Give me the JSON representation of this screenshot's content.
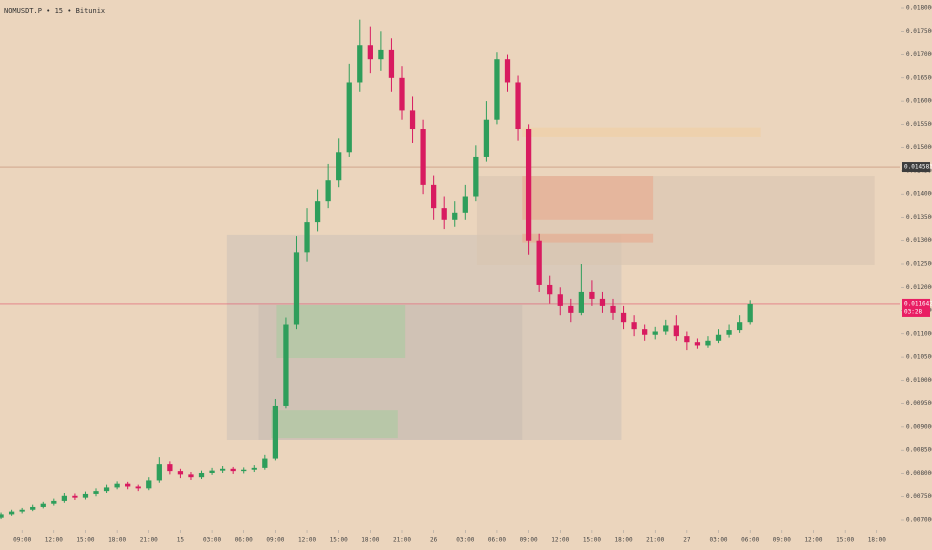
{
  "chart_data": {
    "type": "candlestick",
    "title": "NOMUSDT.P • 15 • Bitunix",
    "up_color": "#2e9e5b",
    "down_color": "#d81b60",
    "x": [
      -2,
      -1,
      0,
      1,
      2,
      3,
      4,
      5,
      6,
      7,
      8,
      9,
      10,
      11,
      12,
      13,
      14,
      15,
      16,
      17,
      18,
      19,
      20,
      21,
      22,
      23,
      24,
      25,
      26,
      27,
      28,
      29,
      30,
      31,
      32,
      33,
      34,
      35,
      36,
      37,
      38,
      39,
      40,
      41,
      42,
      43,
      44,
      45,
      46,
      47,
      48,
      49,
      50,
      51,
      52,
      53,
      54,
      55,
      56,
      57,
      58,
      59,
      60,
      61,
      62,
      63,
      64,
      65,
      66,
      67,
      68,
      69
    ],
    "open": [
      0.00705,
      0.00712,
      0.00718,
      0.00722,
      0.00728,
      0.00735,
      0.00741,
      0.00752,
      0.00748,
      0.00756,
      0.00762,
      0.0077,
      0.00778,
      0.00772,
      0.00768,
      0.00785,
      0.0082,
      0.00805,
      0.00798,
      0.00792,
      0.00801,
      0.00806,
      0.0081,
      0.00805,
      0.00808,
      0.00812,
      0.00832,
      0.00945,
      0.0112,
      0.01275,
      0.0134,
      0.01385,
      0.0143,
      0.0149,
      0.0164,
      0.0172,
      0.0169,
      0.0171,
      0.0165,
      0.0158,
      0.0154,
      0.0142,
      0.0137,
      0.01345,
      0.0136,
      0.01395,
      0.0148,
      0.0156,
      0.0169,
      0.0164,
      0.0154,
      0.013,
      0.01205,
      0.01185,
      0.0116,
      0.01145,
      0.0119,
      0.01175,
      0.0116,
      0.01145,
      0.01125,
      0.0111,
      0.01098,
      0.01105,
      0.01118,
      0.01095,
      0.01082,
      0.01075,
      0.01085,
      0.01098,
      0.01108,
      0.01125
    ],
    "high": [
      0.00716,
      0.00722,
      0.00726,
      0.00733,
      0.00739,
      0.00746,
      0.00758,
      0.00757,
      0.00761,
      0.00768,
      0.00776,
      0.00783,
      0.00782,
      0.00776,
      0.00792,
      0.00835,
      0.00826,
      0.0081,
      0.00803,
      0.00806,
      0.00812,
      0.00816,
      0.00814,
      0.00813,
      0.00818,
      0.0084,
      0.0096,
      0.01135,
      0.0131,
      0.0137,
      0.0141,
      0.01465,
      0.0152,
      0.0168,
      0.01775,
      0.0176,
      0.0175,
      0.01735,
      0.01675,
      0.0161,
      0.0156,
      0.0144,
      0.01395,
      0.01385,
      0.0142,
      0.01505,
      0.016,
      0.01705,
      0.017,
      0.01655,
      0.0155,
      0.01315,
      0.01225,
      0.012,
      0.01175,
      0.0125,
      0.01215,
      0.0119,
      0.01175,
      0.0116,
      0.0114,
      0.0112,
      0.01115,
      0.0113,
      0.0114,
      0.01105,
      0.0109,
      0.01095,
      0.0111,
      0.0112,
      0.0114,
      0.01172
    ],
    "low": [
      0.00702,
      0.00709,
      0.00714,
      0.00719,
      0.00725,
      0.00731,
      0.00737,
      0.00743,
      0.00744,
      0.00751,
      0.00758,
      0.00766,
      0.00766,
      0.00762,
      0.00764,
      0.0078,
      0.00798,
      0.0079,
      0.00786,
      0.00788,
      0.00797,
      0.00801,
      0.00799,
      0.008,
      0.00803,
      0.00808,
      0.00828,
      0.0094,
      0.0111,
      0.01255,
      0.0132,
      0.0137,
      0.01415,
      0.0148,
      0.0162,
      0.0166,
      0.01665,
      0.0162,
      0.0156,
      0.0151,
      0.014,
      0.01345,
      0.01325,
      0.0133,
      0.01345,
      0.01385,
      0.0147,
      0.0155,
      0.0162,
      0.01515,
      0.0127,
      0.0119,
      0.01165,
      0.0114,
      0.01125,
      0.0114,
      0.0116,
      0.01145,
      0.0113,
      0.0111,
      0.01095,
      0.01085,
      0.01088,
      0.01098,
      0.01085,
      0.01065,
      0.01068,
      0.0107,
      0.0108,
      0.01092,
      0.01102,
      0.0112
    ],
    "close": [
      0.00712,
      0.00718,
      0.00722,
      0.00728,
      0.00735,
      0.00741,
      0.00752,
      0.00748,
      0.00756,
      0.00762,
      0.0077,
      0.00778,
      0.00772,
      0.00768,
      0.00785,
      0.0082,
      0.00805,
      0.00798,
      0.00792,
      0.00801,
      0.00806,
      0.0081,
      0.00805,
      0.00808,
      0.00812,
      0.00832,
      0.00945,
      0.0112,
      0.01275,
      0.0134,
      0.01385,
      0.0143,
      0.0149,
      0.0164,
      0.0172,
      0.0169,
      0.0171,
      0.0165,
      0.0158,
      0.0154,
      0.0142,
      0.0137,
      0.01345,
      0.0136,
      0.01395,
      0.0148,
      0.0156,
      0.0169,
      0.0164,
      0.0154,
      0.013,
      0.01205,
      0.01185,
      0.0116,
      0.01145,
      0.0119,
      0.01175,
      0.0116,
      0.01145,
      0.01125,
      0.0111,
      0.01098,
      0.01105,
      0.01118,
      0.01095,
      0.01082,
      0.01075,
      0.01085,
      0.01098,
      0.01108,
      0.01125,
      0.011642
    ],
    "zones": [
      {
        "x": [
          19.4,
          56.8
        ],
        "y": [
          0.00872,
          0.013125
        ],
        "color": "#cfc3b8"
      },
      {
        "x": [
          22.4,
          47.4
        ],
        "y": [
          0.00872,
          0.01162
        ],
        "color": "#c9bdb3"
      },
      {
        "x": [
          24.1,
          36.3
        ],
        "y": [
          0.01048,
          0.01162
        ],
        "color": "#a9c9a0"
      },
      {
        "x": [
          23.6,
          35.6
        ],
        "y": [
          0.00876,
          0.00936
        ],
        "color": "#a9c9a0"
      },
      {
        "x": [
          43.1,
          80.8
        ],
        "y": [
          0.01248,
          0.01439
        ],
        "color": "#d9c4b0"
      },
      {
        "x": [
          47.4,
          59.8
        ],
        "y": [
          0.01345,
          0.01439
        ],
        "color": "#e8a98c"
      },
      {
        "x": [
          47.4,
          59.8
        ],
        "y": [
          0.01296,
          0.01315
        ],
        "color": "#e8a98c"
      },
      {
        "x": [
          47.4,
          70.0
        ],
        "y": [
          0.01523,
          0.01543
        ],
        "color": "#f0cfa2"
      }
    ],
    "price_lines": [
      {
        "value": 0.014583,
        "color": "#c08a70",
        "label_color": "#3c3c3c"
      },
      {
        "value": 0.011642,
        "color": "#e0566e",
        "label_color": "#e91e63",
        "countdown": "03:28"
      }
    ],
    "xlim": [
      -2.1,
      83.2
    ],
    "xticks": [
      {
        "value": 0,
        "label": "09:00"
      },
      {
        "value": 3,
        "label": "12:00"
      },
      {
        "value": 6,
        "label": "15:00"
      },
      {
        "value": 9,
        "label": "18:00"
      },
      {
        "value": 12,
        "label": "21:00"
      },
      15,
      {
        "value": 18,
        "label": "03:00"
      },
      {
        "value": 21,
        "label": "06:00"
      },
      {
        "value": 24,
        "label": "09:00"
      },
      {
        "value": 27,
        "label": "12:00"
      },
      {
        "value": 30,
        "label": "15:00"
      },
      {
        "value": 33,
        "label": "18:00"
      },
      {
        "value": 36,
        "label": "21:00"
      },
      {
        "value": 39,
        "label": "26"
      },
      {
        "value": 42,
        "label": "03:00"
      },
      {
        "value": 45,
        "label": "06:00"
      },
      {
        "value": 48,
        "label": "09:00"
      },
      {
        "value": 51,
        "label": "12:00"
      },
      {
        "value": 54,
        "label": "15:00"
      },
      {
        "value": 57,
        "label": "18:00"
      },
      {
        "value": 60,
        "label": "21:00"
      },
      {
        "value": 63,
        "label": "27"
      },
      {
        "value": 66,
        "label": "03:00"
      },
      {
        "value": 69,
        "label": "06:00"
      },
      {
        "value": 72,
        "label": "09:00"
      },
      {
        "value": 75,
        "label": "12:00"
      },
      {
        "value": 78,
        "label": "15:00"
      },
      {
        "value": 81,
        "label": "18:00"
      }
    ],
    "ylim": [
      0.006828,
      0.018172
    ],
    "yticks": [
      {
        "value": 0.007,
        "label": "0.007000"
      },
      {
        "value": 0.0075,
        "label": "0.007500"
      },
      {
        "value": 0.008,
        "label": "0.008000"
      },
      {
        "value": 0.0085,
        "label": "0.008500"
      },
      {
        "value": 0.009,
        "label": "0.009000"
      },
      {
        "value": 0.0095,
        "label": "0.009500"
      },
      {
        "value": 0.01,
        "label": "0.010000"
      },
      {
        "value": 0.0105,
        "label": "0.010500"
      },
      {
        "value": 0.011,
        "label": "0.011000"
      },
      {
        "value": 0.0115,
        "label": "0.011500"
      },
      {
        "value": 0.012,
        "label": "0.012000"
      },
      {
        "value": 0.0125,
        "label": "0.012500"
      },
      {
        "value": 0.013,
        "label": "0.013000"
      },
      {
        "value": 0.0135,
        "label": "0.013500"
      },
      {
        "value": 0.014,
        "label": "0.014000"
      },
      {
        "value": 0.0145,
        "label": "0.014500"
      },
      {
        "value": 0.015,
        "label": "0.015000"
      },
      {
        "value": 0.0155,
        "label": "0.015500"
      },
      {
        "value": 0.016,
        "label": "0.016000"
      },
      {
        "value": 0.0165,
        "label": "0.016500"
      },
      {
        "value": 0.017,
        "label": "0.017000"
      },
      {
        "value": 0.0175,
        "label": "0.017500"
      },
      {
        "value": 0.018,
        "label": "0.018000"
      }
    ]
  }
}
